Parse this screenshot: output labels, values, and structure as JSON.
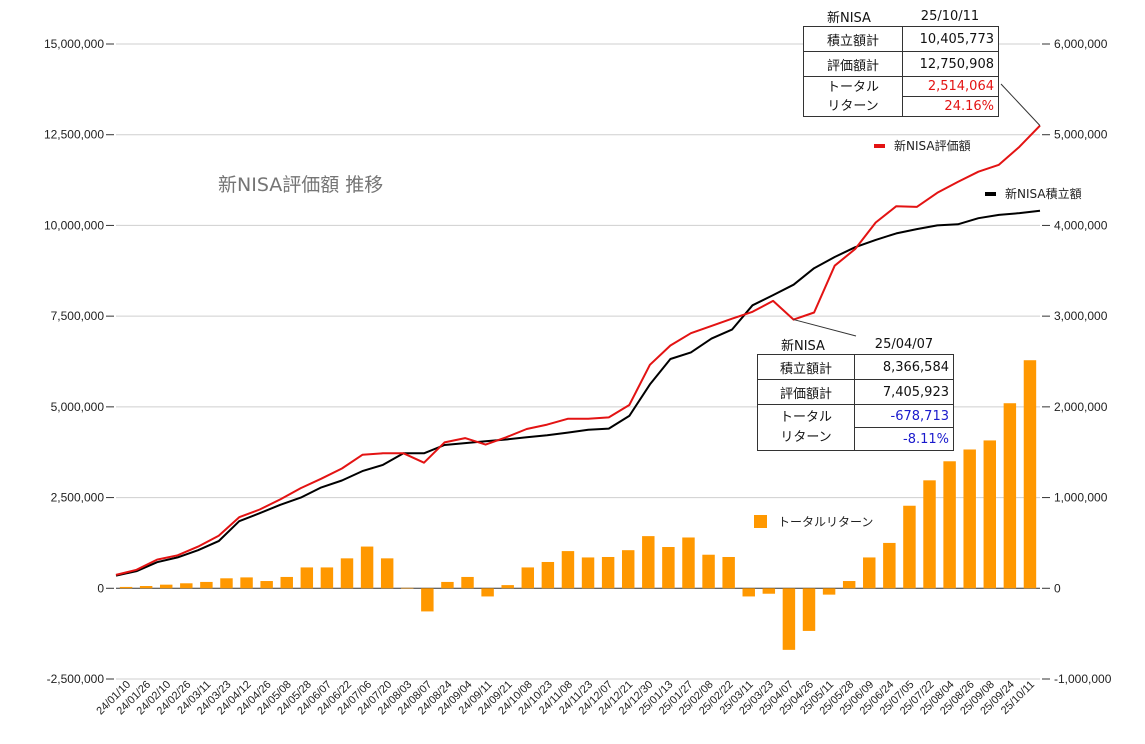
{
  "chart_data": {
    "type": "bar",
    "title": "新NISA評価額 推移",
    "xlabel": "",
    "ylabel": "",
    "ylim_left": [
      -2500000,
      15000000
    ],
    "ylim_right": [
      -1000000,
      6000000
    ],
    "left_ticks": [
      {
        "v": 15000000,
        "label": "15,000,000"
      },
      {
        "v": 12500000,
        "label": "12,500,000"
      },
      {
        "v": 10000000,
        "label": "10,000,000"
      },
      {
        "v": 7500000,
        "label": "7,500,000"
      },
      {
        "v": 5000000,
        "label": "5,000,000"
      },
      {
        "v": 2500000,
        "label": "2,500,000"
      },
      {
        "v": 0,
        "label": "0"
      },
      {
        "v": -2500000,
        "label": "-2,500,000"
      }
    ],
    "right_ticks": [
      {
        "v": 6000000,
        "label": "6,000,000"
      },
      {
        "v": 5000000,
        "label": "5,000,000"
      },
      {
        "v": 4000000,
        "label": "4,000,000"
      },
      {
        "v": 3000000,
        "label": "3,000,000"
      },
      {
        "v": 2000000,
        "label": "2,000,000"
      },
      {
        "v": 1000000,
        "label": "1,000,000"
      },
      {
        "v": 0,
        "label": "0"
      },
      {
        "v": -1000000,
        "label": "-1,000,000"
      }
    ],
    "grid": true,
    "x_labels": [
      "24/01/10",
      "24/01/26",
      "24/02/10",
      "24/02/26",
      "24/03/11",
      "24/03/23",
      "24/04/12",
      "24/04/26",
      "24/05/08",
      "24/05/28",
      "24/06/07",
      "24/06/22",
      "24/07/06",
      "24/07/20",
      "24/08/03",
      "24/08/07",
      "24/08/24",
      "24/09/04",
      "24/09/11",
      "24/09/21",
      "24/10/08",
      "24/10/23",
      "24/11/08",
      "24/11/23",
      "24/12/07",
      "24/12/21",
      "24/12/30",
      "25/01/13",
      "25/01/27",
      "25/02/08",
      "25/02/22",
      "25/03/11",
      "25/03/23",
      "25/04/07",
      "25/04/26",
      "25/05/11",
      "25/05/28",
      "25/06/09",
      "25/06/24",
      "25/07/05",
      "25/07/22",
      "25/08/04",
      "25/08/26",
      "25/09/08",
      "25/09/24",
      "25/10/11"
    ],
    "series": [
      {
        "name": "新NISA積立額",
        "axis": "left",
        "kind": "line",
        "color": "#000000",
        "values": [
          350000,
          470000,
          720000,
          850000,
          1050000,
          1300000,
          1850000,
          2070000,
          2300000,
          2500000,
          2780000,
          2970000,
          3230000,
          3400000,
          3720000,
          3720000,
          3950000,
          4000000,
          4050000,
          4100000,
          4160000,
          4220000,
          4290000,
          4370000,
          4400000,
          4750000,
          5620000,
          6320000,
          6500000,
          6880000,
          7130000,
          7800000,
          8080000,
          8366584,
          8820000,
          9130000,
          9400000,
          9600000,
          9780000,
          9900000,
          10000000,
          10030000,
          10200000,
          10290000,
          10340000,
          10405773
        ]
      },
      {
        "name": "新NISA評価額",
        "axis": "left",
        "kind": "line",
        "color": "#e31313",
        "values": [
          370000,
          510000,
          790000,
          910000,
          1150000,
          1450000,
          1960000,
          2170000,
          2450000,
          2760000,
          3020000,
          3300000,
          3680000,
          3720000,
          3720000,
          3460000,
          4020000,
          4140000,
          3960000,
          4160000,
          4390000,
          4510000,
          4670000,
          4670000,
          4710000,
          5050000,
          6160000,
          6690000,
          7030000,
          7230000,
          7430000,
          7620000,
          7920000,
          7405923,
          7600000,
          8890000,
          9350000,
          10080000,
          10530000,
          10510000,
          10900000,
          11200000,
          11480000,
          11670000,
          12170000,
          12750908
        ]
      },
      {
        "name": "トータルリターン",
        "axis": "right",
        "kind": "bar",
        "color": "#ff9800",
        "values": [
          15000,
          25000,
          40000,
          55000,
          70000,
          110000,
          120000,
          80000,
          125000,
          230000,
          230000,
          330000,
          460000,
          330000,
          5000,
          -255000,
          70000,
          125000,
          -90000,
          35000,
          230000,
          290000,
          410000,
          340000,
          345000,
          420000,
          575000,
          455000,
          560000,
          370000,
          345000,
          -90000,
          -60000,
          -678713,
          -470000,
          -70000,
          80000,
          340000,
          500000,
          910000,
          1190000,
          1400000,
          1530000,
          1630000,
          2040000,
          2514064
        ]
      }
    ],
    "legend_position": "right",
    "callouts": [
      {
        "name": "callout-2510",
        "index": 45,
        "header_left": "新NISA",
        "date": "25/10/11",
        "rows": [
          {
            "label": "積立額計",
            "value": "10,405,773"
          },
          {
            "label": "評価額計",
            "value": "12,750,908"
          }
        ],
        "return_label_1": "トータル",
        "return_label_2": "リターン",
        "return_value": "2,514,064",
        "return_pct": "24.16%",
        "sign": "pos"
      },
      {
        "name": "callout-2504",
        "index": 33,
        "header_left": "新NISA",
        "date": "25/04/07",
        "rows": [
          {
            "label": "積立額計",
            "value": "8,366,584"
          },
          {
            "label": "評価額計",
            "value": "7,405,923"
          }
        ],
        "return_label_1": "トータル",
        "return_label_2": "リターン",
        "return_value": "-678,713",
        "return_pct": "-8.11%",
        "sign": "neg"
      }
    ]
  }
}
